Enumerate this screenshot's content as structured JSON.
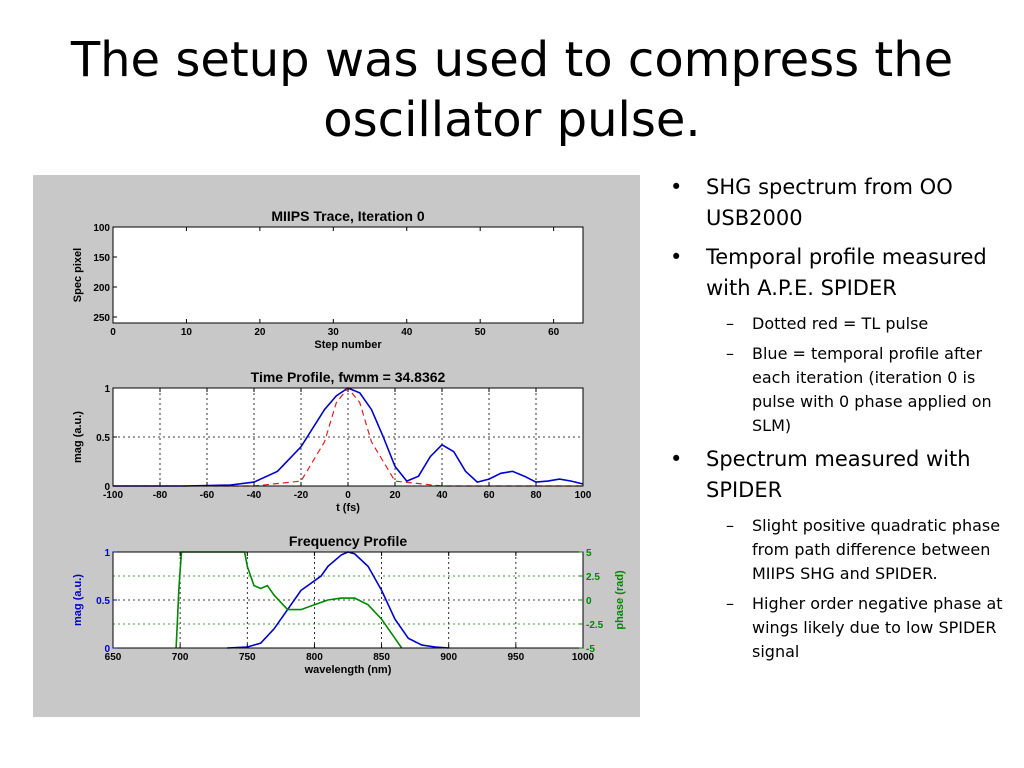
{
  "slide": {
    "title": "The setup was used to compress the oscillator pulse."
  },
  "bullets": [
    {
      "text": "SHG spectrum from OO USB2000",
      "sub": []
    },
    {
      "text": "Temporal profile measured with A.P.E. SPIDER",
      "sub": [
        "Dotted red = TL pulse",
        "Blue = temporal profile after each iteration (iteration 0 is pulse with 0 phase applied on SLM)"
      ]
    },
    {
      "text": "Spectrum measured with SPIDER",
      "sub": [
        "Slight positive quadratic phase from path difference between MIIPS SHG and SPIDER.",
        "Higher order negative phase at wings likely due to low SPIDER signal"
      ]
    }
  ],
  "chart_data": [
    {
      "type": "heatmap",
      "title": "MIIPS Trace, Iteration 0",
      "xlabel": "Step number",
      "ylabel": "Spec pixel",
      "xlim": [
        0,
        64
      ],
      "ylim": [
        100,
        260
      ],
      "y_inverted": true,
      "xticks": [
        0,
        10,
        20,
        30,
        40,
        50,
        60
      ],
      "yticks": [
        100,
        150,
        200,
        250
      ],
      "grid": false
    },
    {
      "type": "line",
      "title": "Time Profile, fwmm = 34.8362",
      "xlabel": "t (fs)",
      "ylabel": "mag (a.u.)",
      "xlim": [
        -100,
        100
      ],
      "ylim": [
        0,
        1
      ],
      "xticks": [
        -100,
        -80,
        -60,
        -40,
        -20,
        0,
        20,
        40,
        60,
        80,
        100
      ],
      "yticks": [
        0,
        0.5,
        1
      ],
      "grid": true,
      "series": [
        {
          "color": "#0000cc",
          "style": "solid",
          "x": [
            -100,
            -70,
            -50,
            -40,
            -30,
            -20,
            -10,
            -5,
            0,
            5,
            10,
            15,
            20,
            25,
            30,
            35,
            40,
            45,
            50,
            55,
            60,
            65,
            70,
            75,
            80,
            85,
            90,
            95,
            100
          ],
          "y": [
            0,
            0,
            0.01,
            0.04,
            0.15,
            0.4,
            0.78,
            0.92,
            1.0,
            0.95,
            0.78,
            0.5,
            0.2,
            0.05,
            0.1,
            0.3,
            0.42,
            0.35,
            0.15,
            0.04,
            0.07,
            0.13,
            0.15,
            0.1,
            0.04,
            0.05,
            0.07,
            0.05,
            0.02
          ]
        },
        {
          "color": "#dd2222",
          "style": "dashed",
          "x": [
            -100,
            -40,
            -20,
            -10,
            -5,
            0,
            5,
            10,
            20,
            40,
            100
          ],
          "y": [
            0,
            0,
            0.05,
            0.45,
            0.85,
            1.0,
            0.85,
            0.45,
            0.05,
            0,
            0
          ]
        }
      ]
    },
    {
      "type": "line",
      "title": "Frequency Profile",
      "xlabel": "wavelength (nm)",
      "ylabel": "mag (a.u.)",
      "y2label": "phase (rad)",
      "xlim": [
        650,
        1000
      ],
      "ylim": [
        0,
        1
      ],
      "y2lim": [
        -5,
        5
      ],
      "xticks": [
        650,
        700,
        750,
        800,
        850,
        900,
        950,
        1000
      ],
      "yticks": [
        0,
        0.5,
        1
      ],
      "y2ticks": [
        -5,
        -2.5,
        0,
        2.5,
        5
      ],
      "grid": true,
      "series": [
        {
          "color": "#0000cc",
          "axis": "left",
          "x": [
            735,
            750,
            760,
            770,
            780,
            790,
            800,
            805,
            810,
            820,
            825,
            830,
            840,
            850,
            860,
            870,
            880,
            890,
            900
          ],
          "y": [
            0,
            0.01,
            0.05,
            0.2,
            0.4,
            0.6,
            0.7,
            0.75,
            0.85,
            0.97,
            1.0,
            0.98,
            0.85,
            0.6,
            0.3,
            0.1,
            0.03,
            0.01,
            0
          ]
        },
        {
          "color": "#008800",
          "axis": "right",
          "x": [
            697,
            698,
            699,
            700,
            701,
            702,
            748,
            750,
            755,
            760,
            765,
            770,
            780,
            790,
            800,
            810,
            820,
            830,
            840,
            850,
            855,
            860,
            865
          ],
          "y": [
            -5,
            -2,
            1,
            3,
            5,
            5,
            5,
            3.5,
            1.5,
            1.2,
            1.5,
            0.5,
            -1,
            -1,
            -0.5,
            0,
            0.2,
            0.2,
            -0.5,
            -2,
            -3,
            -4,
            -5
          ]
        }
      ]
    }
  ]
}
